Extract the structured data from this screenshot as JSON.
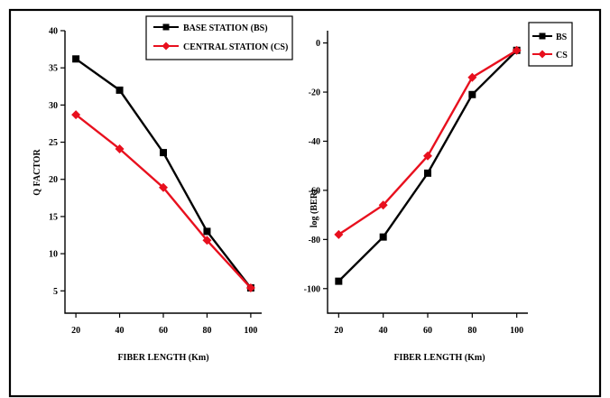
{
  "chart_data": [
    {
      "type": "line",
      "x": [
        20,
        40,
        60,
        80,
        100
      ],
      "xlabel": "FIBER LENGTH (Km)",
      "ylabel": "Q FACTOR",
      "xlim": [
        15,
        105
      ],
      "ylim": [
        2,
        40
      ],
      "xticks": [
        "20",
        "40",
        "60",
        "80",
        "100"
      ],
      "yticks": [
        "5",
        "10",
        "15",
        "20",
        "25",
        "30",
        "35",
        "40"
      ],
      "legend_position": "top-right",
      "grid": false,
      "series": [
        {
          "name": "BASE STATION (BS)",
          "color": "#000000",
          "marker": "square",
          "values": [
            36.2,
            32.0,
            23.6,
            13.0,
            5.4
          ]
        },
        {
          "name": "CENTRAL STATION (CS)",
          "color": "#e8101e",
          "marker": "diamond",
          "values": [
            28.7,
            24.1,
            18.9,
            11.8,
            5.4
          ]
        }
      ]
    },
    {
      "type": "line",
      "x": [
        20,
        40,
        60,
        80,
        100
      ],
      "xlabel": "FIBER LENGTH (Km)",
      "ylabel": "log (BER)",
      "xlim": [
        15,
        105
      ],
      "ylim": [
        -110,
        5
      ],
      "xticks": [
        "20",
        "40",
        "60",
        "80",
        "100"
      ],
      "yticks": [
        "0",
        "-20",
        "-40",
        "-60",
        "-80",
        "-100"
      ],
      "legend_position": "top-right",
      "grid": false,
      "series": [
        {
          "name": "BS",
          "color": "#000000",
          "marker": "square",
          "values": [
            -97,
            -79,
            -53,
            -21,
            -3
          ]
        },
        {
          "name": "CS",
          "color": "#e8101e",
          "marker": "diamond",
          "values": [
            -78,
            -66,
            -46,
            -14,
            -3
          ]
        }
      ]
    }
  ]
}
